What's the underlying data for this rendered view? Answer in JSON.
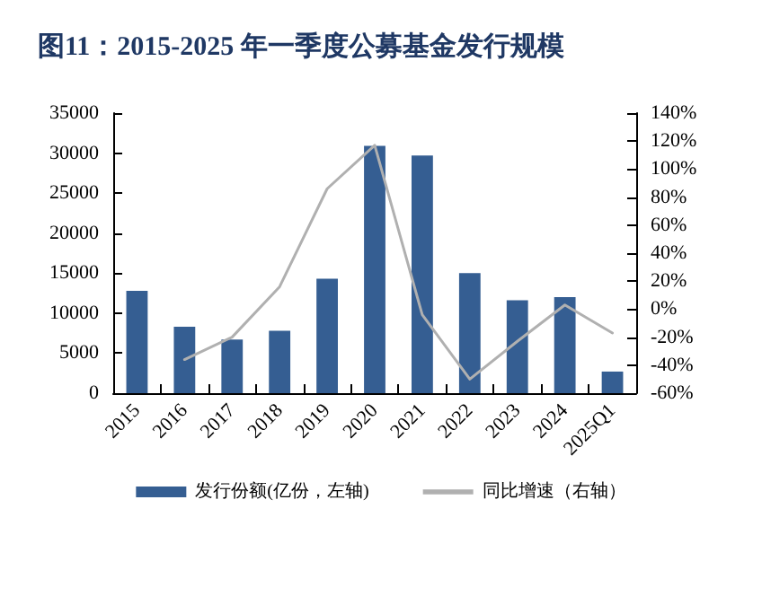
{
  "chart_data": {
    "type": "bar",
    "title": "图11：2015-2025 年一季度公募基金发行规模",
    "categories": [
      "2015",
      "2016",
      "2017",
      "2018",
      "2019",
      "2020",
      "2021",
      "2022",
      "2023",
      "2024",
      "2025Q1"
    ],
    "series": [
      {
        "name": "发行份额(亿份，左轴)",
        "color": "#355e92",
        "values": [
          12800,
          8300,
          6700,
          7800,
          14300,
          30900,
          29700,
          15000,
          11600,
          12000,
          2700
        ]
      },
      {
        "name": "同比增速（右轴）",
        "type": "line",
        "axis": "y2",
        "color": "#b0b0b0",
        "values": [
          null,
          -36,
          -20,
          16,
          86,
          117,
          -4,
          -50,
          -23,
          3,
          -17
        ]
      }
    ],
    "ylim": [
      0,
      35000
    ],
    "yticks": [
      0,
      5000,
      10000,
      15000,
      20000,
      25000,
      30000,
      35000
    ],
    "y2lim": [
      -60,
      140
    ],
    "y2ticks": [
      {
        "value": -60,
        "label": "-60%"
      },
      {
        "value": -40,
        "label": "-40%"
      },
      {
        "value": -20,
        "label": "-20%"
      },
      {
        "value": 0,
        "label": "0%"
      },
      {
        "value": 20,
        "label": "20%"
      },
      {
        "value": 40,
        "label": "40%"
      },
      {
        "value": 60,
        "label": "60%"
      },
      {
        "value": 80,
        "label": "80%"
      },
      {
        "value": 100,
        "label": "100%"
      },
      {
        "value": 120,
        "label": "120%"
      },
      {
        "value": 140,
        "label": "140%"
      }
    ],
    "legend": "bottom",
    "grid": false,
    "marker": "none"
  }
}
